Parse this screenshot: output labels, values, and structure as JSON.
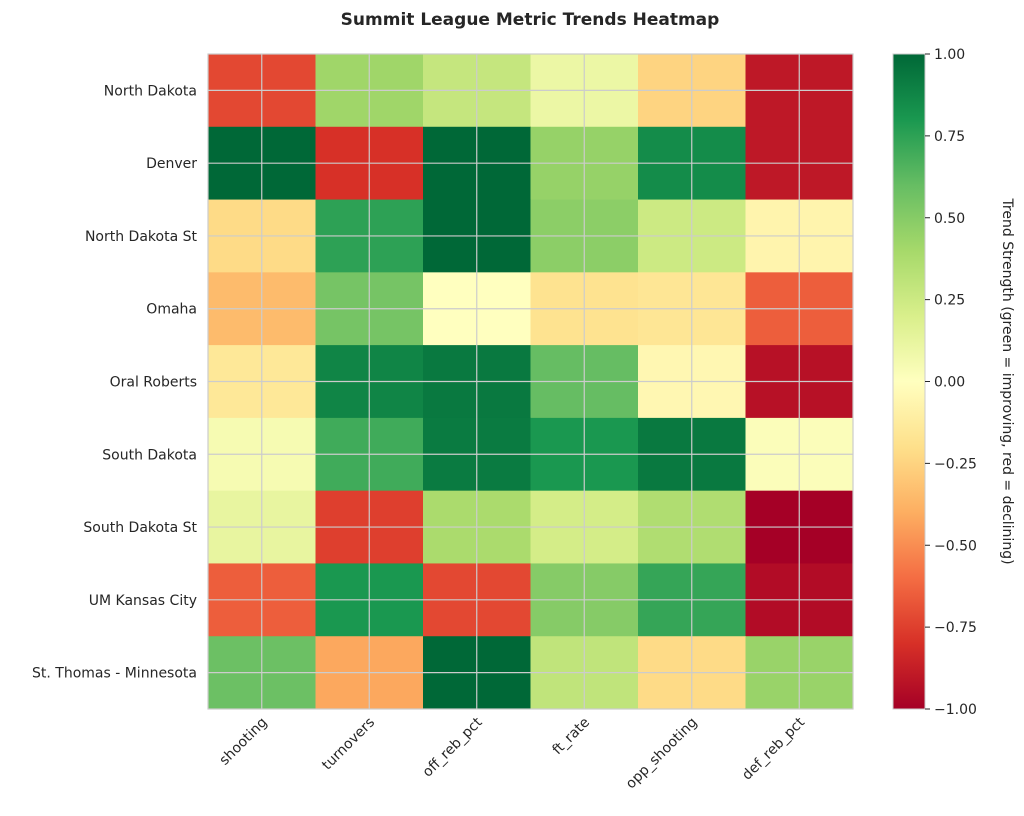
{
  "chart_data": {
    "type": "heatmap",
    "title": "Summit League Metric Trends Heatmap",
    "xlabel": "",
    "ylabel": "",
    "x_categories": [
      "shooting",
      "turnovers",
      "off_reb_pct",
      "ft_rate",
      "opp_shooting",
      "def_reb_pct"
    ],
    "y_categories": [
      "North Dakota",
      "Denver",
      "North Dakota St",
      "Omaha",
      "Oral Roberts",
      "South Dakota",
      "South Dakota St",
      "UM Kansas City",
      "St. Thomas - Minnesota"
    ],
    "values": [
      [
        -0.72,
        0.42,
        0.28,
        0.1,
        -0.25,
        -0.9
      ],
      [
        1.0,
        -0.8,
        1.0,
        0.45,
        0.85,
        -0.9
      ],
      [
        -0.22,
        0.75,
        1.0,
        0.48,
        0.25,
        -0.07
      ],
      [
        -0.35,
        0.55,
        0.0,
        -0.18,
        -0.16,
        -0.65
      ],
      [
        -0.15,
        0.88,
        0.93,
        0.6,
        -0.05,
        -0.93
      ],
      [
        0.05,
        0.7,
        0.92,
        0.8,
        0.93,
        0.02
      ],
      [
        0.12,
        -0.75,
        0.38,
        0.22,
        0.36,
        -1.0
      ],
      [
        -0.65,
        0.8,
        -0.72,
        0.5,
        0.73,
        -0.95
      ],
      [
        0.58,
        -0.42,
        1.0,
        0.3,
        -0.22,
        0.44
      ]
    ],
    "colormap": "RdYlGn",
    "vmin": -1.0,
    "vmax": 1.0,
    "grid": true,
    "colorbar": {
      "label": "Trend Strength (green = improving, red = declining)",
      "ticks": [
        1.0,
        0.75,
        0.5,
        0.25,
        0.0,
        -0.25,
        -0.5,
        -0.75,
        -1.0
      ],
      "tick_labels": [
        "1.00",
        "0.75",
        "0.50",
        "0.25",
        "0.00",
        "−0.25",
        "−0.50",
        "−0.75",
        "−1.00"
      ],
      "placement": "right"
    }
  }
}
